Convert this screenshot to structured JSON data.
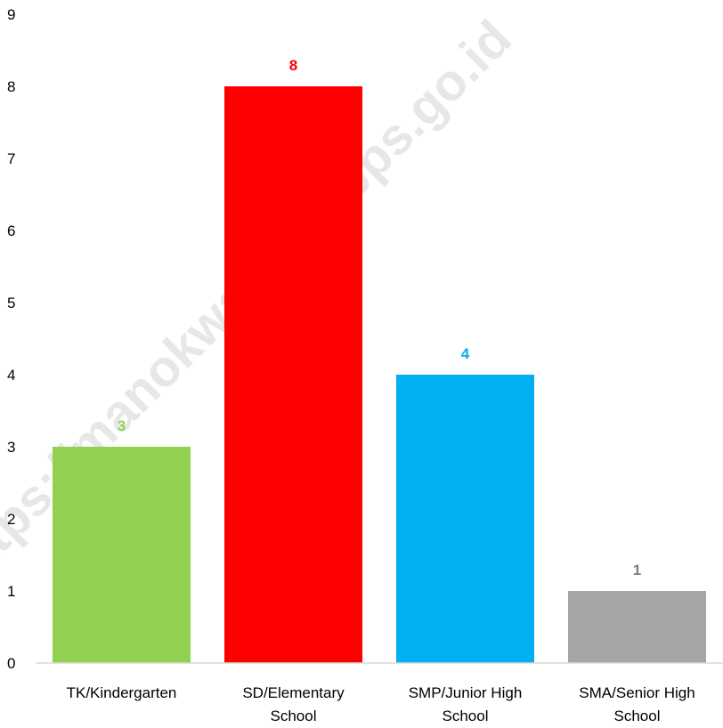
{
  "chart_data": {
    "type": "bar",
    "categories": [
      [
        "TK/Kindergarten"
      ],
      [
        "SD/Elementary",
        "School"
      ],
      [
        "SMP/Junior High",
        "School"
      ],
      [
        "SMA/Senior High",
        "School"
      ]
    ],
    "values": [
      3,
      8,
      4,
      1
    ],
    "bar_colors": [
      "#92d050",
      "#ff0000",
      "#00b0f0",
      "#a5a5a5"
    ],
    "label_colors": [
      "#92d050",
      "#ff0000",
      "#00b0f0",
      "#7f7f7f"
    ],
    "ylim": [
      0,
      9
    ],
    "yticks": [
      "0",
      "1",
      "2",
      "3",
      "4",
      "5",
      "6",
      "7",
      "8",
      "9"
    ],
    "grid": false,
    "legend": "none",
    "axis_color": "#d9d9d9"
  },
  "watermark": "https://manokwarikab.bps.go.id"
}
